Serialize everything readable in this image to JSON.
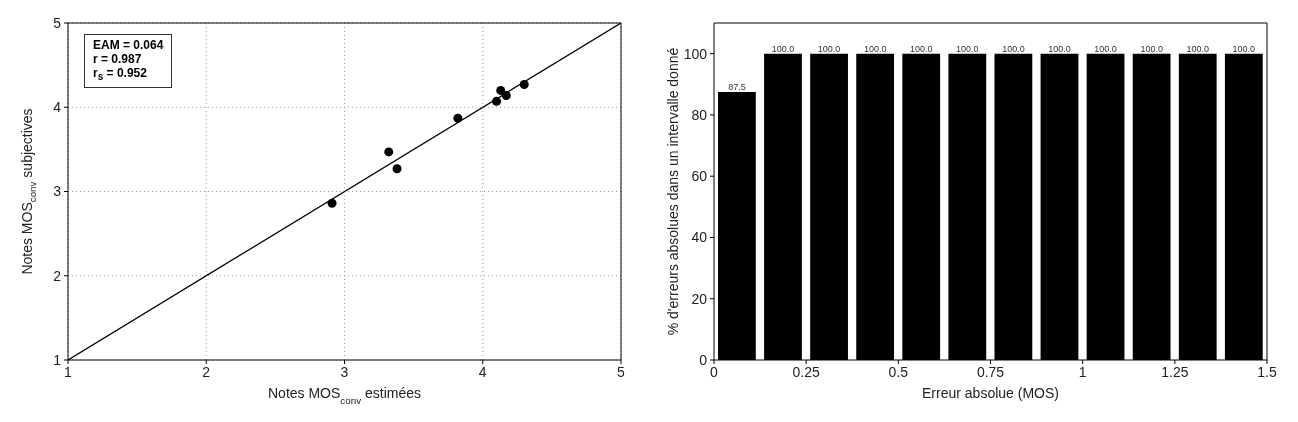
{
  "chart_data": [
    {
      "type": "scatter",
      "xlabel": "Notes MOS$_{conv}$ estimées",
      "ylabel": "Notes MOS$_{conv}$ subjectives",
      "annotations": [
        "EAM = 0.064",
        "r = 0.987",
        "r$_{s}$ = 0.952"
      ],
      "xlim": [
        1,
        5
      ],
      "ylim": [
        1,
        5
      ],
      "xticks": [
        1,
        2,
        3,
        4,
        5
      ],
      "yticks": [
        1,
        2,
        3,
        4,
        5
      ],
      "grid": true,
      "series": [
        {
          "type": "scatter",
          "color": "#000000",
          "marker": "circle",
          "x": [
            2.91,
            3.32,
            3.38,
            3.82,
            4.1,
            4.13,
            4.17,
            4.3
          ],
          "values": [
            2.86,
            3.47,
            3.27,
            3.87,
            4.07,
            4.2,
            4.14,
            4.27
          ]
        },
        {
          "type": "line",
          "color": "#000000",
          "marker": "none",
          "x": [
            1,
            5
          ],
          "values": [
            1,
            5
          ]
        }
      ]
    },
    {
      "type": "histogram",
      "xlabel": "Erreur absolue (MOS)",
      "ylabel": "% d'erreurs absolues dans un intervalle donné",
      "bins": [
        0,
        0.125,
        0.25,
        0.375,
        0.5,
        0.625,
        0.75,
        0.875,
        1,
        1.125,
        1.25,
        1.375,
        1.5
      ],
      "values": [
        87.5,
        100,
        100,
        100,
        100,
        100,
        100,
        100,
        100,
        100,
        100,
        100
      ],
      "color": "#000000",
      "value_labels": [
        "87.5",
        "100.0",
        "100.0",
        "100.0",
        "100.0",
        "100.0",
        "100.0",
        "100.0",
        "100.0",
        "100.0",
        "100.0",
        "100.0"
      ],
      "xlim": [
        0,
        1.5
      ],
      "ylim": [
        0,
        110
      ],
      "xticks": [
        0,
        0.25,
        0.5,
        0.75,
        1,
        1.25,
        1.5
      ],
      "yticks": [
        0,
        20,
        40,
        60,
        80,
        100
      ],
      "grid": false
    }
  ]
}
